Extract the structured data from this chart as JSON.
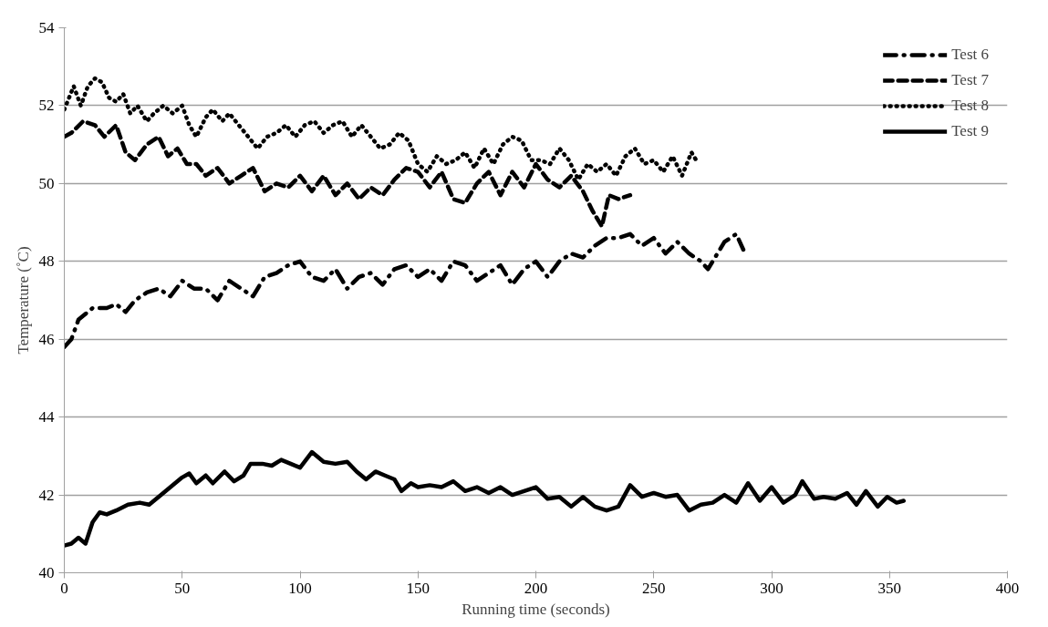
{
  "chart_data": {
    "type": "line",
    "xlabel": "Running time (seconds)",
    "ylabel": "Temperature (˚C)",
    "xlim": [
      0,
      400
    ],
    "xticks": [
      0,
      50,
      100,
      150,
      200,
      250,
      300,
      350,
      400
    ],
    "ylim": [
      40,
      54
    ],
    "yticks": [
      40,
      42,
      44,
      46,
      48,
      50,
      52,
      54
    ],
    "grid": "y",
    "legend": "top right",
    "marker": "none",
    "series": [
      {
        "name": "Test 6",
        "color": "#000000",
        "line_style": "dashdot",
        "x": [
          0,
          3,
          6,
          8,
          12,
          18,
          22,
          26,
          30,
          35,
          40,
          45,
          50,
          55,
          60,
          65,
          70,
          75,
          80,
          85,
          90,
          95,
          100,
          105,
          110,
          115,
          120,
          125,
          130,
          135,
          140,
          145,
          150,
          155,
          160,
          165,
          170,
          175,
          180,
          185,
          190,
          195,
          200,
          205,
          210,
          215,
          220,
          225,
          230,
          235,
          240,
          245,
          250,
          255,
          260,
          265,
          270,
          273,
          280,
          285,
          288
        ],
        "values": [
          45.8,
          46.0,
          46.5,
          46.6,
          46.8,
          46.8,
          46.9,
          46.7,
          47.0,
          47.2,
          47.3,
          47.1,
          47.5,
          47.3,
          47.3,
          47.0,
          47.5,
          47.3,
          47.1,
          47.6,
          47.7,
          47.9,
          48.0,
          47.6,
          47.5,
          47.8,
          47.3,
          47.6,
          47.7,
          47.4,
          47.8,
          47.9,
          47.6,
          47.8,
          47.5,
          48.0,
          47.9,
          47.5,
          47.7,
          47.9,
          47.4,
          47.8,
          48.0,
          47.6,
          48.0,
          48.2,
          48.1,
          48.4,
          48.6,
          48.6,
          48.7,
          48.4,
          48.6,
          48.2,
          48.5,
          48.2,
          48.0,
          47.8,
          48.5,
          48.7,
          48.3
        ]
      },
      {
        "name": "Test 7",
        "color": "#000000",
        "line_style": "dashed",
        "x": [
          0,
          3,
          8,
          13,
          17,
          22,
          26,
          30,
          35,
          40,
          44,
          48,
          52,
          56,
          60,
          65,
          70,
          75,
          80,
          85,
          90,
          95,
          100,
          105,
          110,
          115,
          120,
          125,
          130,
          135,
          140,
          145,
          150,
          155,
          160,
          165,
          170,
          175,
          180,
          185,
          190,
          195,
          200,
          205,
          210,
          215,
          220,
          224,
          228,
          231,
          235,
          240
        ],
        "values": [
          51.2,
          51.3,
          51.6,
          51.5,
          51.2,
          51.5,
          50.8,
          50.6,
          51.0,
          51.2,
          50.7,
          50.9,
          50.5,
          50.5,
          50.2,
          50.4,
          50.0,
          50.2,
          50.4,
          49.8,
          50.0,
          49.9,
          50.2,
          49.8,
          50.2,
          49.7,
          50.0,
          49.6,
          49.9,
          49.7,
          50.1,
          50.4,
          50.3,
          49.9,
          50.3,
          49.6,
          49.5,
          50.0,
          50.3,
          49.7,
          50.3,
          49.9,
          50.5,
          50.1,
          49.9,
          50.2,
          49.8,
          49.3,
          48.9,
          49.7,
          49.6,
          49.7
        ]
      },
      {
        "name": "Test 8",
        "color": "#000000",
        "line_style": "dotted",
        "x": [
          0,
          2,
          4,
          7,
          10,
          13,
          16,
          19,
          22,
          25,
          28,
          31,
          35,
          38,
          42,
          46,
          50,
          53,
          56,
          60,
          63,
          67,
          70,
          74,
          78,
          82,
          86,
          90,
          94,
          98,
          102,
          106,
          110,
          114,
          118,
          122,
          126,
          130,
          134,
          138,
          142,
          146,
          150,
          154,
          158,
          162,
          166,
          170,
          174,
          178,
          182,
          186,
          190,
          194,
          198,
          202,
          206,
          210,
          214,
          218,
          222,
          226,
          230,
          234,
          238,
          242,
          246,
          250,
          254,
          258,
          262,
          266,
          268
        ],
        "values": [
          51.9,
          52.2,
          52.5,
          52.0,
          52.5,
          52.7,
          52.6,
          52.2,
          52.1,
          52.3,
          51.8,
          52.0,
          51.6,
          51.8,
          52.0,
          51.8,
          52.0,
          51.5,
          51.2,
          51.7,
          51.9,
          51.6,
          51.8,
          51.5,
          51.2,
          50.9,
          51.2,
          51.3,
          51.5,
          51.2,
          51.5,
          51.6,
          51.3,
          51.5,
          51.6,
          51.2,
          51.5,
          51.2,
          50.9,
          51.0,
          51.3,
          51.1,
          50.5,
          50.3,
          50.7,
          50.5,
          50.6,
          50.8,
          50.4,
          50.9,
          50.5,
          51.0,
          51.2,
          51.1,
          50.6,
          50.6,
          50.5,
          50.9,
          50.6,
          50.1,
          50.5,
          50.3,
          50.5,
          50.2,
          50.7,
          50.9,
          50.5,
          50.6,
          50.3,
          50.7,
          50.2,
          50.8,
          50.6
        ]
      },
      {
        "name": "Test 9",
        "color": "#000000",
        "line_style": "solid",
        "x": [
          0,
          3,
          6,
          9,
          12,
          15,
          18,
          22,
          27,
          32,
          36,
          40,
          45,
          50,
          53,
          56,
          60,
          63,
          68,
          72,
          76,
          79,
          84,
          88,
          92,
          96,
          100,
          105,
          110,
          115,
          120,
          124,
          128,
          132,
          136,
          140,
          143,
          147,
          150,
          155,
          160,
          165,
          170,
          175,
          180,
          185,
          190,
          195,
          200,
          205,
          210,
          215,
          220,
          225,
          230,
          235,
          240,
          245,
          250,
          255,
          260,
          265,
          270,
          275,
          280,
          285,
          290,
          295,
          300,
          305,
          310,
          313,
          318,
          322,
          327,
          332,
          336,
          340,
          345,
          349,
          353,
          356
        ],
        "values": [
          40.7,
          40.75,
          40.9,
          40.75,
          41.3,
          41.55,
          41.5,
          41.6,
          41.75,
          41.8,
          41.75,
          41.95,
          42.2,
          42.45,
          42.55,
          42.3,
          42.5,
          42.3,
          42.6,
          42.35,
          42.5,
          42.8,
          42.8,
          42.75,
          42.9,
          42.8,
          42.7,
          43.1,
          42.85,
          42.8,
          42.85,
          42.6,
          42.4,
          42.6,
          42.5,
          42.4,
          42.1,
          42.3,
          42.2,
          42.25,
          42.2,
          42.35,
          42.1,
          42.2,
          42.05,
          42.2,
          42.0,
          42.1,
          42.2,
          41.9,
          41.95,
          41.7,
          41.95,
          41.7,
          41.6,
          41.7,
          42.25,
          41.95,
          42.05,
          41.95,
          42.0,
          41.6,
          41.75,
          41.8,
          42.0,
          41.8,
          42.3,
          41.85,
          42.2,
          41.8,
          42.0,
          42.35,
          41.9,
          41.95,
          41.9,
          42.05,
          41.75,
          42.1,
          41.7,
          41.95,
          41.8,
          41.85
        ]
      }
    ]
  }
}
